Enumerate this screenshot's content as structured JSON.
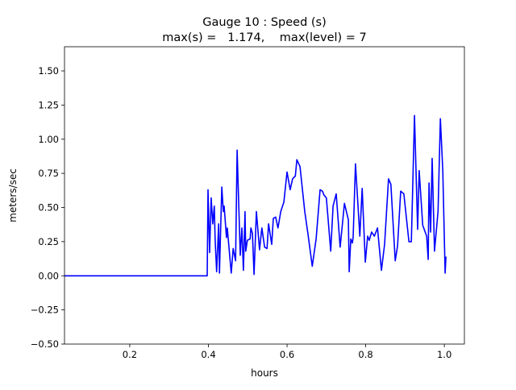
{
  "chart_data": {
    "type": "line",
    "title_line1": "Gauge 10 : Speed (s)",
    "title_line2": "max(s) =   1.174,    max(level) = 7",
    "xlabel": "hours",
    "ylabel": "meters/sec",
    "xlim": [
      0.034,
      1.051
    ],
    "ylim": [
      -0.5,
      1.677
    ],
    "xticks": [
      0.2,
      0.4,
      0.6,
      0.8,
      1.0
    ],
    "xtick_labels": [
      "0.2",
      "0.4",
      "0.6",
      "0.8",
      "1.0"
    ],
    "yticks": [
      -0.5,
      -0.25,
      0,
      0.25,
      0.5,
      0.75,
      1.0,
      1.25,
      1.5
    ],
    "ytick_labels": [
      "−0.50",
      "−0.25",
      "0.00",
      "0.25",
      "0.50",
      "0.75",
      "1.00",
      "1.25",
      "1.50"
    ],
    "grid": false,
    "series": [
      {
        "name": "speed",
        "color": "#0000ff",
        "x": [
          0.034,
          0.397,
          0.399,
          0.403,
          0.407,
          0.411,
          0.415,
          0.417,
          0.421,
          0.426,
          0.428,
          0.434,
          0.438,
          0.44,
          0.446,
          0.448,
          0.458,
          0.463,
          0.469,
          0.473,
          0.481,
          0.485,
          0.489,
          0.493,
          0.495,
          0.499,
          0.506,
          0.508,
          0.512,
          0.516,
          0.522,
          0.53,
          0.536,
          0.543,
          0.549,
          0.553,
          0.561,
          0.565,
          0.571,
          0.577,
          0.584,
          0.592,
          0.6,
          0.608,
          0.614,
          0.621,
          0.625,
          0.633,
          0.645,
          0.653,
          0.664,
          0.674,
          0.684,
          0.69,
          0.694,
          0.7,
          0.711,
          0.717,
          0.725,
          0.735,
          0.746,
          0.756,
          0.758,
          0.762,
          0.766,
          0.768,
          0.774,
          0.785,
          0.791,
          0.799,
          0.805,
          0.809,
          0.815,
          0.822,
          0.83,
          0.84,
          0.848,
          0.858,
          0.864,
          0.875,
          0.881,
          0.889,
          0.897,
          0.91,
          0.916,
          0.924,
          0.932,
          0.936,
          0.945,
          0.955,
          0.959,
          0.961,
          0.965,
          0.969,
          0.975,
          0.984,
          0.99,
          0.996,
          1.002,
          1.004
        ],
        "y": [
          0,
          0,
          0.63,
          0.17,
          0.57,
          0.38,
          0.51,
          0.27,
          0.03,
          0.38,
          0.02,
          0.65,
          0.47,
          0.51,
          0.28,
          0.35,
          0.02,
          0.2,
          0.11,
          0.92,
          0.15,
          0.35,
          0.04,
          0.47,
          0.18,
          0.26,
          0.27,
          0.35,
          0.31,
          0.01,
          0.47,
          0.19,
          0.35,
          0.21,
          0.2,
          0.38,
          0.23,
          0.42,
          0.43,
          0.35,
          0.47,
          0.54,
          0.76,
          0.63,
          0.71,
          0.73,
          0.85,
          0.8,
          0.47,
          0.31,
          0.07,
          0.27,
          0.63,
          0.62,
          0.59,
          0.57,
          0.18,
          0.51,
          0.6,
          0.21,
          0.53,
          0.41,
          0.03,
          0.27,
          0.24,
          0.28,
          0.82,
          0.29,
          0.64,
          0.1,
          0.29,
          0.26,
          0.32,
          0.29,
          0.35,
          0.04,
          0.23,
          0.71,
          0.67,
          0.11,
          0.22,
          0.62,
          0.6,
          0.25,
          0.25,
          1.174,
          0.34,
          0.77,
          0.37,
          0.29,
          0.12,
          0.68,
          0.32,
          0.86,
          0.18,
          0.47,
          1.15,
          0.77,
          0.02,
          0.14
        ]
      }
    ]
  }
}
